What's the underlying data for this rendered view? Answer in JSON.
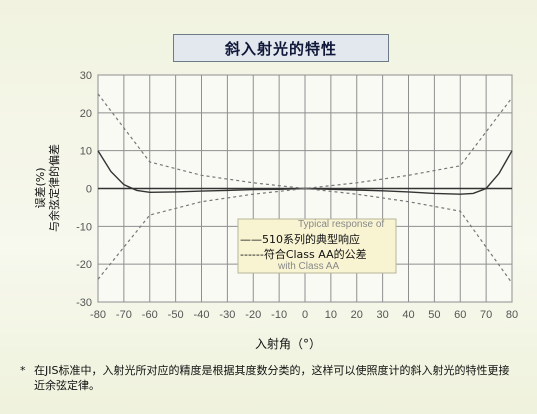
{
  "title": "斜入射光的特性",
  "footnote": {
    "marker": "*",
    "text": "在JIS标准中，入射光所对应的精度是根据其度数分类的，这样可以使照度计的斜入射光的特性更接近余弦定律。"
  },
  "chart_data": {
    "type": "line",
    "xlabel": "入射角（°）",
    "ylabel_line1": "误差(%)",
    "ylabel_line2": "与余弦定律的偏差",
    "xlim": [
      -80,
      80
    ],
    "ylim": [
      -30,
      30
    ],
    "x_ticks": [
      -80,
      -70,
      -60,
      -50,
      -40,
      -30,
      -20,
      -10,
      0,
      10,
      20,
      30,
      40,
      50,
      60,
      70,
      80
    ],
    "y_ticks": [
      30,
      20,
      10,
      0,
      -10,
      -20,
      -30
    ],
    "grid": true,
    "series": [
      {
        "name": "510系列的典型响应",
        "style": "solid",
        "x": [
          -80,
          -75,
          -70,
          -65,
          -60,
          -50,
          -40,
          -30,
          -20,
          -10,
          0,
          10,
          20,
          30,
          40,
          50,
          60,
          65,
          70,
          75,
          80
        ],
        "y": [
          10,
          4.5,
          1,
          -0.5,
          -1,
          -0.9,
          -0.7,
          -0.5,
          -0.3,
          -0.2,
          0,
          -0.2,
          -0.4,
          -0.6,
          -0.9,
          -1.3,
          -1.5,
          -1.3,
          0,
          4,
          10
        ]
      },
      {
        "name": "符合Class AA的公差",
        "style": "dashed",
        "x": [
          -80,
          -60,
          -40,
          -20,
          0,
          20,
          40,
          60,
          80
        ],
        "y": [
          25,
          7,
          3.5,
          1.5,
          0,
          1.5,
          3.5,
          6,
          24
        ]
      },
      {
        "name": "符合Class AA的公差",
        "style": "dashed",
        "x": [
          -80,
          -60,
          -40,
          -20,
          0,
          20,
          40,
          60,
          80
        ],
        "y": [
          -24,
          -7,
          -3.5,
          -1.5,
          0,
          -1.5,
          -3.5,
          -6,
          -25
        ]
      }
    ],
    "legend": {
      "placement": "bottom-center",
      "entries": [
        {
          "prefix": "——",
          "label": "510系列的典型响应"
        },
        {
          "prefix": "------",
          "label": "符合Class AA的公差"
        }
      ],
      "background_fragments": [
        "Typical response of",
        "with Class AA"
      ]
    },
    "colors": {
      "plot_bg": "#f9faf4",
      "grid": "#8f8f8f",
      "zero_line": "#333333",
      "typical_line": "#333333",
      "tolerance_line": "#777777",
      "legend_bg": "#f8f4d2"
    }
  }
}
